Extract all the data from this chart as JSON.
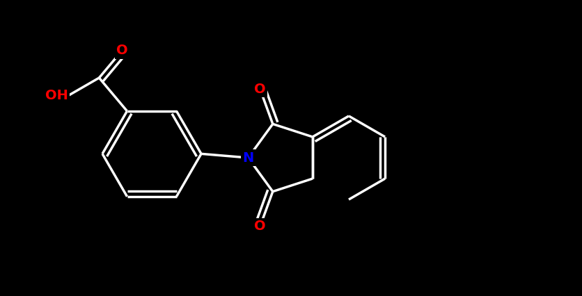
{
  "bg": "#000000",
  "bc": "#ffffff",
  "oc": "#ff0000",
  "nc": "#0000ff",
  "lw": 2.5,
  "lw_thin": 1.8,
  "fs": 13,
  "xlim": [
    -0.5,
    9.0
  ],
  "ylim": [
    -0.3,
    4.8
  ]
}
